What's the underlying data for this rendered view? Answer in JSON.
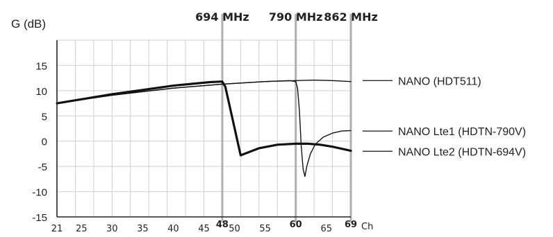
{
  "chart_data": {
    "type": "line",
    "title": "",
    "ylabel": "G (dB)",
    "xlabel": "Ch",
    "xlim": [
      21,
      69
    ],
    "ylim": [
      -15,
      20
    ],
    "grid": true,
    "x_ticks": [
      21,
      25,
      30,
      35,
      40,
      45,
      50,
      55,
      65
    ],
    "x_ticks_bold": [
      48,
      60,
      69
    ],
    "y_ticks": [
      15,
      10,
      5,
      0,
      -5,
      -10,
      -15
    ],
    "markers": [
      {
        "x": 48,
        "label": "694 MHz"
      },
      {
        "x": 60,
        "label": "790 MHz"
      },
      {
        "x": 69,
        "label": "862 MHz"
      }
    ],
    "series": [
      {
        "name": "NANO (HDT511)",
        "weight": "thin",
        "legend_y": 12,
        "points": [
          [
            21,
            7.5
          ],
          [
            30,
            9.1
          ],
          [
            40,
            10.5
          ],
          [
            48,
            11.3
          ],
          [
            55,
            11.8
          ],
          [
            60,
            12.0
          ],
          [
            63,
            12.1
          ],
          [
            66,
            12.0
          ],
          [
            69,
            11.8
          ]
        ]
      },
      {
        "name": "NANO Lte1 (HDTN-790V)",
        "weight": "thin",
        "legend_y": 2,
        "points": [
          [
            21,
            7.5
          ],
          [
            30,
            9.1
          ],
          [
            40,
            10.5
          ],
          [
            48,
            11.3
          ],
          [
            55,
            11.8
          ],
          [
            59,
            12.0
          ],
          [
            60,
            11.8
          ],
          [
            60.3,
            10.5
          ],
          [
            60.6,
            6
          ],
          [
            60.9,
            -1
          ],
          [
            61.2,
            -5.5
          ],
          [
            61.5,
            -7
          ],
          [
            61.8,
            -5
          ],
          [
            62.4,
            -2.5
          ],
          [
            63.2,
            -0.6
          ],
          [
            64.5,
            0.8
          ],
          [
            66,
            1.6
          ],
          [
            67.5,
            2.0
          ],
          [
            69,
            2.1
          ]
        ]
      },
      {
        "name": "NANO Lte2 (HDTN-694V)",
        "weight": "bold",
        "legend_y": -2,
        "points": [
          [
            21,
            7.5
          ],
          [
            30,
            9.3
          ],
          [
            40,
            11.0
          ],
          [
            46,
            11.7
          ],
          [
            48,
            11.8
          ],
          [
            48.5,
            10.8
          ],
          [
            51,
            -2.8
          ],
          [
            54,
            -1.4
          ],
          [
            57,
            -0.7
          ],
          [
            60,
            -0.5
          ],
          [
            62,
            -0.5
          ],
          [
            64,
            -0.7
          ],
          [
            66,
            -1.1
          ],
          [
            69,
            -1.9
          ]
        ]
      }
    ]
  }
}
